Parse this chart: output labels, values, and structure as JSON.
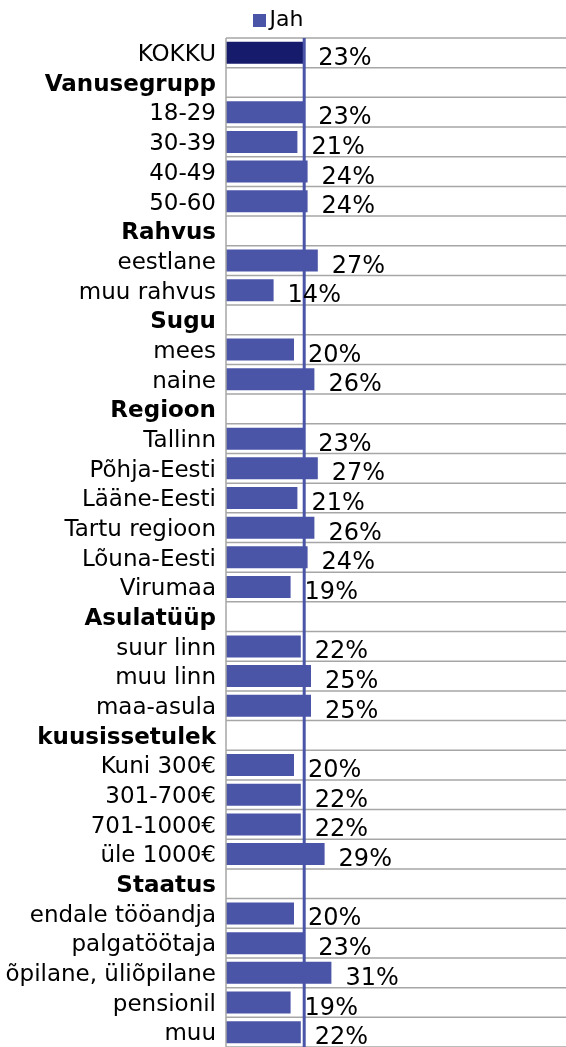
{
  "chart_data": {
    "type": "bar",
    "orientation": "horizontal",
    "categories": [
      "KOKKU",
      "Vanusegrupp",
      "18-29",
      "30-39",
      "40-49",
      "50-60",
      "Rahvus",
      "eestlane",
      "muu rahvus",
      "Sugu",
      "mees",
      "naine",
      "Regioon",
      "Tallinn",
      "Põhja-Eesti",
      "Lääne-Eesti",
      "Tartu regioon",
      "Lõuna-Eesti",
      "Virumaa",
      "Asulatüüp",
      "suur linn",
      "muu linn",
      "maa-asula",
      "kuusissetulek",
      "Kuni 300€",
      "301-700€",
      "701-1000€",
      "üle 1000€",
      "Staatus",
      "endale tööandja",
      "palgatöötaja",
      "õpilane, üliõpilane",
      "pensionil",
      "muu"
    ],
    "series": [
      {
        "name": "Jah",
        "color": "#4a55a8",
        "colors": [
          "#161b6b",
          null,
          "#4a55a8",
          "#4a55a8",
          "#4a55a8",
          "#4a55a8",
          null,
          "#4a55a8",
          "#4a55a8",
          null,
          "#4a55a8",
          "#4a55a8",
          null,
          "#4a55a8",
          "#4a55a8",
          "#4a55a8",
          "#4a55a8",
          "#4a55a8",
          "#4a55a8",
          null,
          "#4a55a8",
          "#4a55a8",
          "#4a55a8",
          null,
          "#4a55a8",
          "#4a55a8",
          "#4a55a8",
          "#4a55a8",
          null,
          "#4a55a8",
          "#4a55a8",
          "#4a55a8",
          "#4a55a8",
          "#4a55a8"
        ],
        "values": [
          23,
          null,
          23,
          21,
          24,
          24,
          null,
          27,
          14,
          null,
          20,
          26,
          null,
          23,
          27,
          21,
          26,
          24,
          19,
          null,
          22,
          25,
          25,
          null,
          20,
          22,
          22,
          29,
          null,
          20,
          23,
          31,
          19,
          22
        ],
        "value_labels": [
          "23%",
          null,
          "23%",
          "21%",
          "24%",
          "24%",
          null,
          "27%",
          "14%",
          null,
          "20%",
          "26%",
          null,
          "23%",
          "27%",
          "21%",
          "26%",
          "24%",
          "19%",
          null,
          "22%",
          "25%",
          "25%",
          null,
          "20%",
          "22%",
          "22%",
          "29%",
          null,
          "20%",
          "23%",
          "31%",
          "19%",
          "22%"
        ]
      }
    ],
    "xlim": [
      0,
      100
    ],
    "tick_labels": "y",
    "grid": "y",
    "legend": "top",
    "ref_lines": [
      {
        "axis": "x",
        "value": 23,
        "color": "#4a55a8"
      }
    ]
  }
}
